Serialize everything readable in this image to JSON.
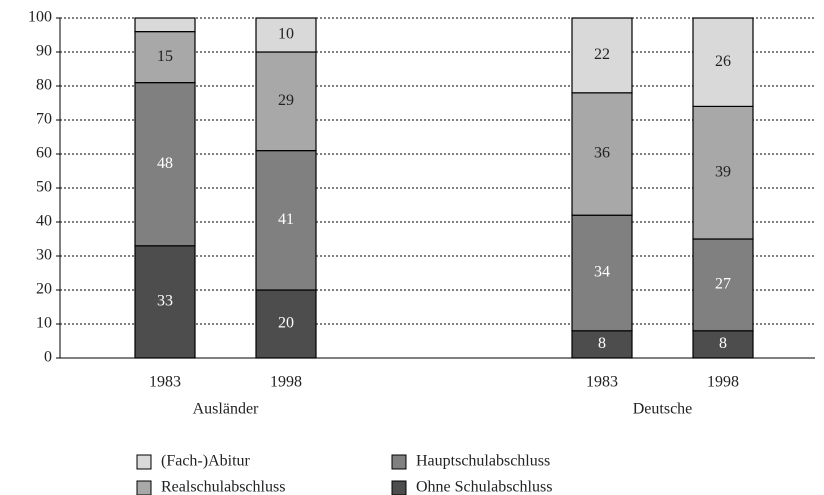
{
  "chart_data": {
    "type": "stacked_bar",
    "categories": [
      "1983",
      "1998",
      "1983",
      "1998"
    ],
    "groups": [
      {
        "name": "Ausländer",
        "size": 2
      },
      {
        "name": "Deutsche",
        "size": 2
      }
    ],
    "series": [
      {
        "name": "Ohne Schulabschluss",
        "color": "#4d4d4d",
        "label_color": "#ffffff",
        "values": [
          33,
          20,
          8,
          8
        ]
      },
      {
        "name": "Hauptschulabschluss",
        "color": "#808080",
        "label_color": "#ffffff",
        "values": [
          48,
          41,
          34,
          27
        ]
      },
      {
        "name": "Realschulabschluss",
        "color": "#a8a8a8",
        "label_color": "#222222",
        "values": [
          15,
          29,
          36,
          39
        ]
      },
      {
        "name": "(Fach-)Abitur",
        "color": "#d9d9d9",
        "label_color": "#222222",
        "values": [
          4,
          10,
          22,
          26
        ],
        "value_labels": [
          null,
          "10",
          "22",
          "26"
        ]
      }
    ],
    "ylim": [
      0,
      100
    ],
    "yticks": [
      0,
      10,
      20,
      30,
      40,
      50,
      60,
      70,
      80,
      90,
      100
    ],
    "grid": true
  }
}
